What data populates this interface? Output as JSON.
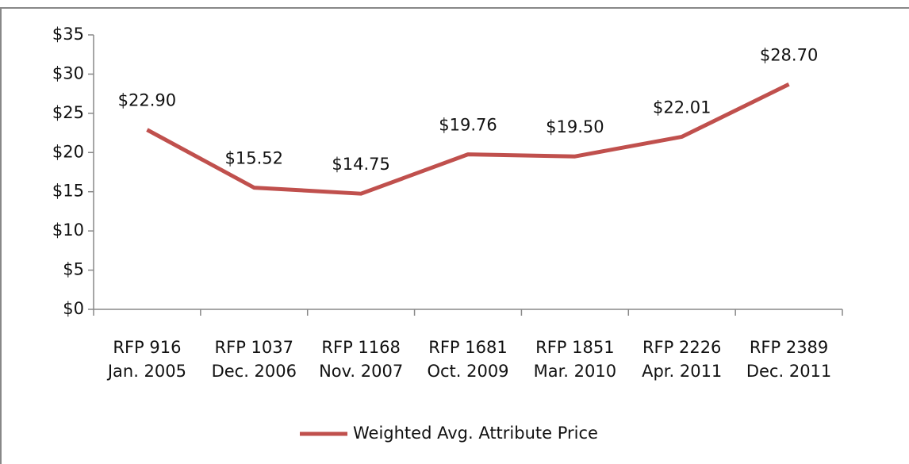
{
  "chart_data": {
    "type": "line",
    "categories": [
      "RFP 916\nJan. 2005",
      "RFP 1037\nDec. 2006",
      "RFP 1168\nNov. 2007",
      "RFP 1681\nOct. 2009",
      "RFP 1851\nMar. 2010",
      "RFP 2226\nApr. 2011",
      "RFP 2389\nDec. 2011"
    ],
    "series": [
      {
        "name": "Weighted Avg. Attribute Price",
        "color": "#c0504d",
        "values": [
          22.9,
          15.52,
          14.75,
          19.76,
          19.5,
          22.01,
          28.7
        ],
        "value_labels": [
          "$22.90",
          "$15.52",
          "$14.75",
          "$19.76",
          "$19.50",
          "$22.01",
          "$28.70"
        ]
      }
    ],
    "ylim": [
      0,
      35
    ],
    "yticks": [
      {
        "value": 0,
        "label": "$0"
      },
      {
        "value": 5,
        "label": "$5"
      },
      {
        "value": 10,
        "label": "$10"
      },
      {
        "value": 15,
        "label": "$15"
      },
      {
        "value": 20,
        "label": "$20"
      },
      {
        "value": 25,
        "label": "$25"
      },
      {
        "value": 30,
        "label": "$30"
      },
      {
        "value": 35,
        "label": "$35"
      }
    ],
    "legend": "bottom",
    "grid": false
  }
}
